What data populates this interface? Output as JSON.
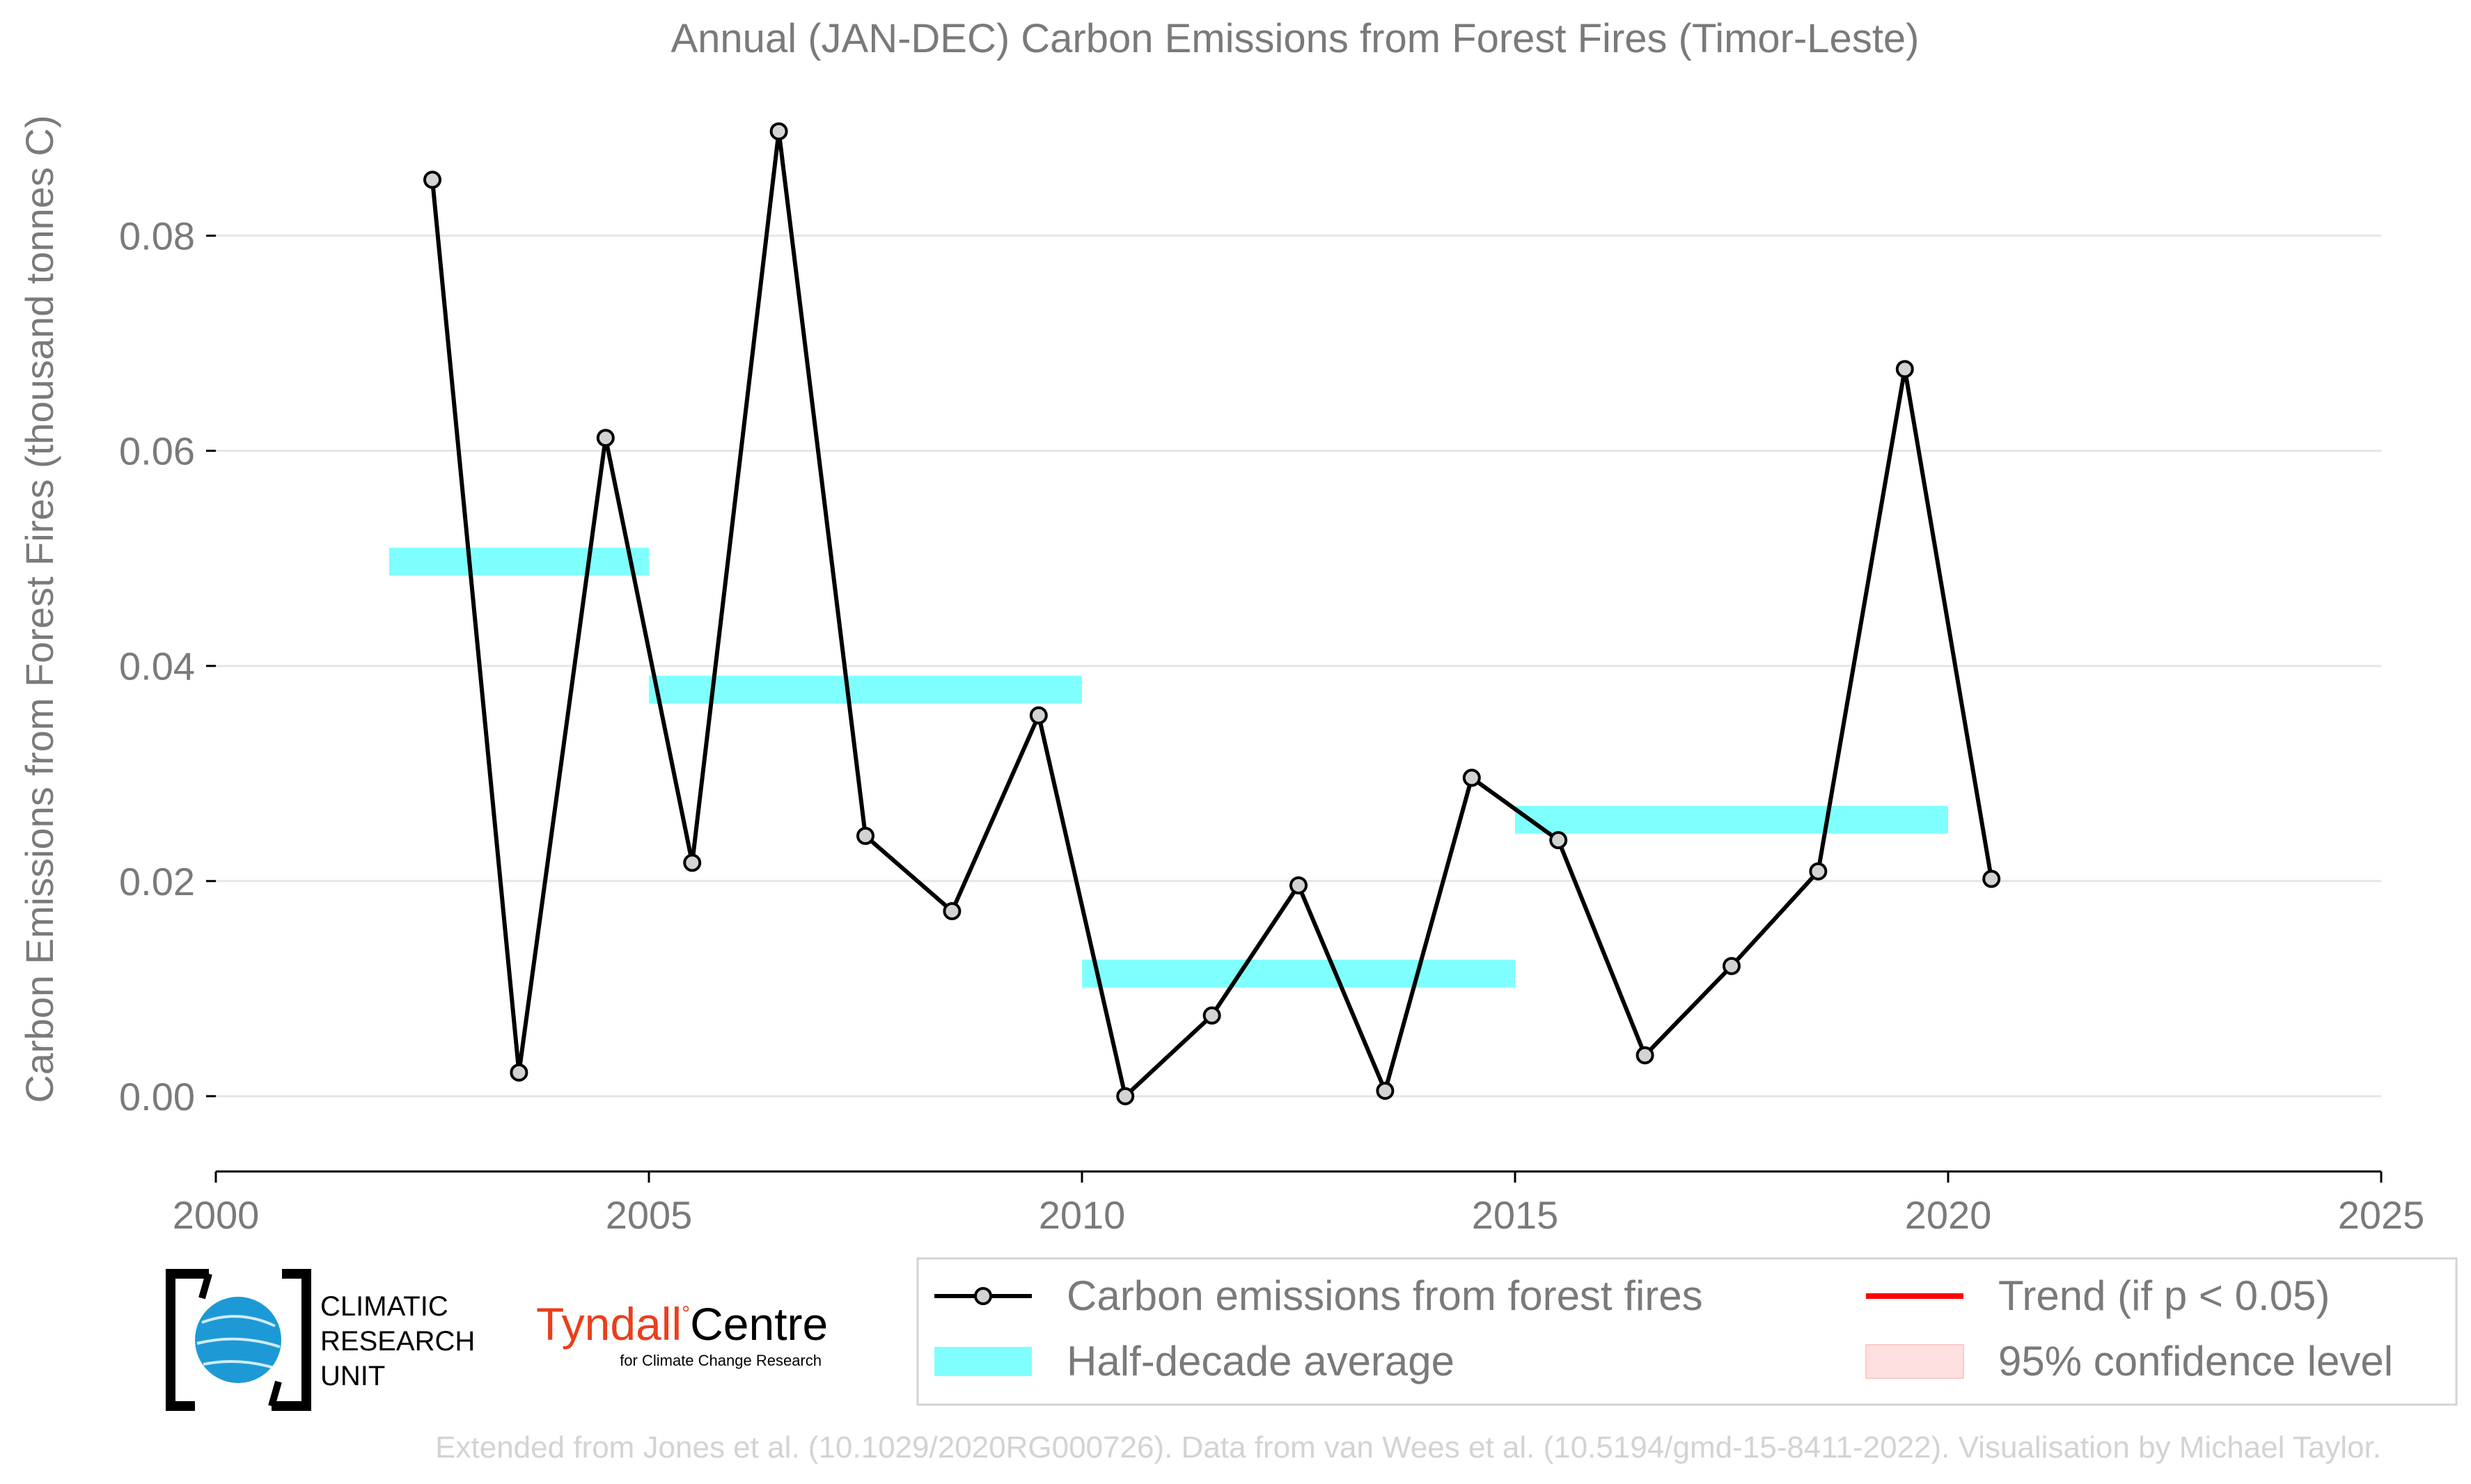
{
  "chart_data": {
    "type": "line",
    "title": "Annual (JAN-DEC) Carbon Emissions from Forest Fires (Timor-Leste)",
    "ylabel": "Carbon Emissions from Forest Fires (thousand tonnes C)",
    "xlabel": "",
    "xlim": [
      2000,
      2025
    ],
    "ylim": [
      -0.007,
      0.0935
    ],
    "x_ticks": [
      2000,
      2005,
      2010,
      2015,
      2020,
      2025
    ],
    "y_ticks": [
      0.0,
      0.02,
      0.04,
      0.06,
      0.08
    ],
    "x_tick_labels": [
      "2000",
      "2005",
      "2010",
      "2015",
      "2020",
      "2025"
    ],
    "y_tick_labels": [
      "0.00",
      "0.02",
      "0.04",
      "0.06",
      "0.08"
    ],
    "grid": "horizontal",
    "series": [
      {
        "name": "Carbon emissions from forest fires",
        "color": "#000000",
        "marker_fill": "#d3d3d3",
        "x": [
          2002.5,
          2003.5,
          2004.5,
          2005.5,
          2006.5,
          2007.5,
          2008.5,
          2009.5,
          2010.5,
          2011.5,
          2012.5,
          2013.5,
          2014.5,
          2015.5,
          2016.5,
          2017.5,
          2018.5,
          2019.5,
          2020.5
        ],
        "y": [
          0.0852,
          0.0022,
          0.0612,
          0.0217,
          0.0897,
          0.0242,
          0.0172,
          0.0354,
          0.0,
          0.0075,
          0.0196,
          0.0005,
          0.0296,
          0.0238,
          0.0038,
          0.0121,
          0.0209,
          0.0676,
          0.0202
        ]
      }
    ],
    "half_decade_average": {
      "name": "Half-decade average",
      "color": "#80ffff",
      "segments": [
        {
          "x0": 2002,
          "x1": 2005,
          "y": 0.0497
        },
        {
          "x0": 2005,
          "x1": 2010,
          "y": 0.0378
        },
        {
          "x0": 2010,
          "x1": 2015,
          "y": 0.0114
        },
        {
          "x0": 2015,
          "x1": 2020,
          "y": 0.0257
        }
      ]
    },
    "legend": {
      "placement": "bottom-right",
      "entries": [
        {
          "label": "Carbon emissions from forest fires",
          "kind": "line-marker",
          "color": "#000000"
        },
        {
          "label": "Trend (if p < 0.05)",
          "kind": "line",
          "color": "#ff0000"
        },
        {
          "label": "Half-decade average",
          "kind": "band",
          "color": "#80ffff"
        },
        {
          "label": "95% confidence level",
          "kind": "patch",
          "color": "#ffe0e0"
        }
      ]
    }
  },
  "logos": {
    "cru": {
      "line1": "CLIMATIC",
      "line2": "RESEARCH",
      "line3": "UNIT",
      "icon": "globe-icon"
    },
    "tyndall": {
      "name1": "Tyndall",
      "name2": "Centre",
      "sub": "for Climate Change Research",
      "color": "#e8401c"
    }
  },
  "footer": "Extended from Jones et al. (10.1029/2020RG000726). Data from van Wees et al. (10.5194/gmd-15-8411-2022). Visualisation by Michael Taylor."
}
